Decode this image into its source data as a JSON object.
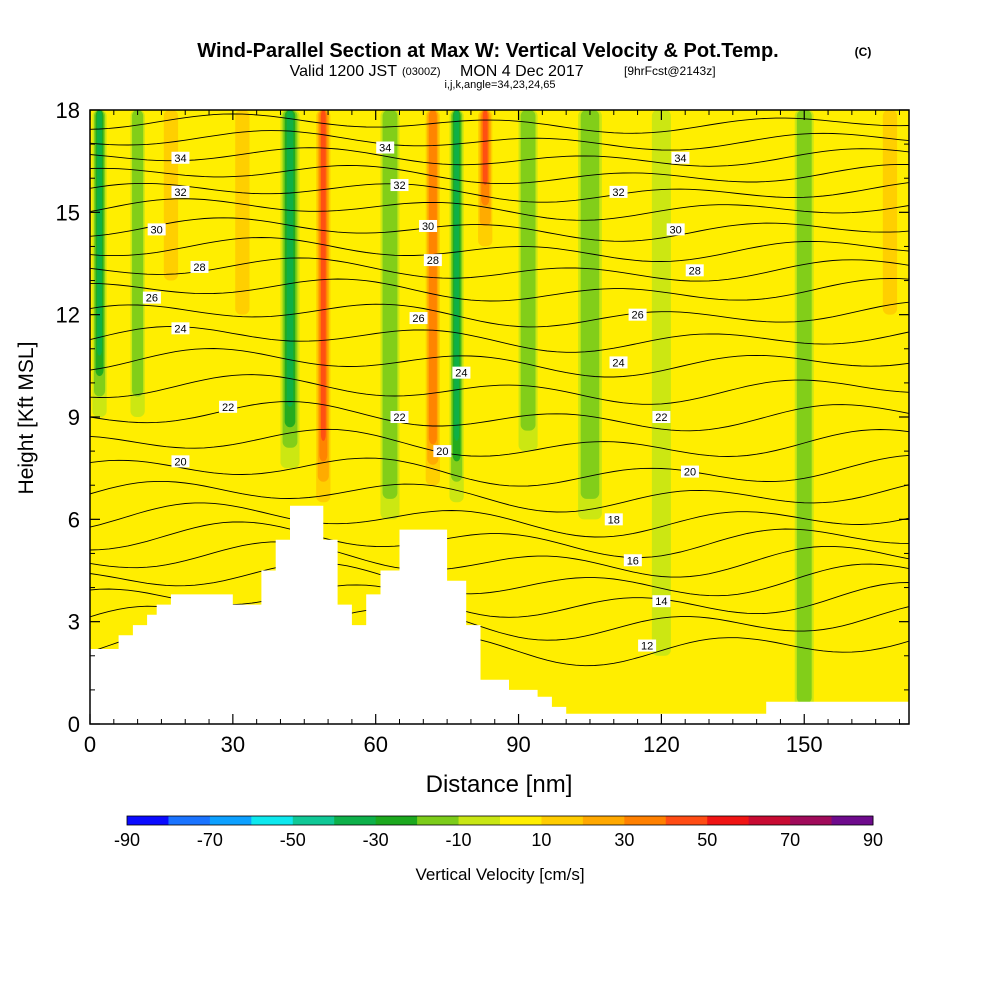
{
  "chart_data": {
    "type": "heatmap",
    "title": "Wind-Parallel Section at Max W: Vertical Velocity & Pot.Temp.",
    "title_unit": "(C)",
    "subtitle": {
      "valid": "Valid 1200 JST",
      "utc": "(0300Z)",
      "date": "MON 4 Dec 2017",
      "fcst": "[9hrFcst@2143z]"
    },
    "grid_info": "i,j,k,angle=34,23,24,65",
    "xlabel": "Distance [nm]",
    "ylabel": "Height [Kft MSL]",
    "xlim": [
      0,
      172
    ],
    "ylim": [
      0,
      18
    ],
    "x_ticks": [
      0,
      30,
      60,
      90,
      120,
      150
    ],
    "y_ticks": [
      0,
      3,
      6,
      9,
      12,
      15,
      18
    ],
    "colorbar": {
      "label": "Vertical Velocity [cm/s]",
      "bounds": [
        -90,
        -80,
        -70,
        -60,
        -50,
        -40,
        -30,
        -20,
        -10,
        0,
        10,
        20,
        30,
        40,
        50,
        60,
        70,
        80,
        90
      ],
      "tick_labels": [
        "-90",
        "-70",
        "-50",
        "-30",
        "-10",
        "10",
        "30",
        "50",
        "70",
        "90"
      ],
      "colors": [
        "#0a0aff",
        "#1a73ff",
        "#0ca0ff",
        "#0ee8ee",
        "#10c896",
        "#0eb04a",
        "#1ca81e",
        "#7ccc1a",
        "#c8e614",
        "#ffee00",
        "#ffcc00",
        "#ffa800",
        "#ff8000",
        "#ff4c14",
        "#f01414",
        "#c80a32",
        "#a00a5a",
        "#6e0a8c"
      ]
    },
    "updraft_columns": [
      {
        "x": 2,
        "w": 3,
        "wmin": -35,
        "ymin": 9
      },
      {
        "x": 10,
        "w": 3,
        "wmin": -15,
        "ymin": 9
      },
      {
        "x": 17,
        "w": 3,
        "wmin": 12,
        "ymin": 13
      },
      {
        "x": 32,
        "w": 3,
        "wmin": 12,
        "ymin": 12
      },
      {
        "x": 42,
        "w": 4,
        "wmin": -38,
        "ymin": 7.5
      },
      {
        "x": 49,
        "w": 3,
        "wmin": 42,
        "ymin": 6.5
      },
      {
        "x": 63,
        "w": 4,
        "wmin": -15,
        "ymin": 6
      },
      {
        "x": 72,
        "w": 3,
        "wmin": 35,
        "ymin": 7
      },
      {
        "x": 77,
        "w": 3,
        "wmin": -38,
        "ymin": 6.5
      },
      {
        "x": 83,
        "w": 3,
        "wmin": 40,
        "ymin": 14
      },
      {
        "x": 92,
        "w": 4,
        "wmin": -12,
        "ymin": 8
      },
      {
        "x": 105,
        "w": 5,
        "wmin": -10,
        "ymin": 6
      },
      {
        "x": 120,
        "w": 4,
        "wmin": -8,
        "ymin": 2
      },
      {
        "x": 150,
        "w": 4,
        "wmin": -10,
        "ymin": 0
      },
      {
        "x": 168,
        "w": 3,
        "wmin": 18,
        "ymin": 12
      }
    ],
    "terrain": [
      [
        0,
        2.2
      ],
      [
        6,
        2.2
      ],
      [
        6,
        2.6
      ],
      [
        9,
        2.6
      ],
      [
        9,
        2.9
      ],
      [
        12,
        2.9
      ],
      [
        12,
        3.2
      ],
      [
        14,
        3.2
      ],
      [
        14,
        3.5
      ],
      [
        17,
        3.5
      ],
      [
        17,
        3.8
      ],
      [
        30,
        3.8
      ],
      [
        30,
        3.5
      ],
      [
        36,
        3.5
      ],
      [
        36,
        4.5
      ],
      [
        39,
        4.5
      ],
      [
        39,
        5.4
      ],
      [
        42,
        5.4
      ],
      [
        42,
        6.4
      ],
      [
        49,
        6.4
      ],
      [
        49,
        5.4
      ],
      [
        52,
        5.4
      ],
      [
        52,
        3.5
      ],
      [
        55,
        3.5
      ],
      [
        55,
        2.9
      ],
      [
        58,
        2.9
      ],
      [
        58,
        3.8
      ],
      [
        61,
        3.8
      ],
      [
        61,
        4.5
      ],
      [
        65,
        4.5
      ],
      [
        65,
        5.7
      ],
      [
        75,
        5.7
      ],
      [
        75,
        4.2
      ],
      [
        79,
        4.2
      ],
      [
        79,
        2.9
      ],
      [
        82,
        2.9
      ],
      [
        82,
        1.3
      ],
      [
        88,
        1.3
      ],
      [
        88,
        1.0
      ],
      [
        94,
        1.0
      ],
      [
        94,
        0.8
      ],
      [
        97,
        0.8
      ],
      [
        97,
        0.5
      ],
      [
        100,
        0.5
      ],
      [
        100,
        0.3
      ],
      [
        142,
        0.3
      ],
      [
        142,
        0.65
      ],
      [
        172,
        0.65
      ]
    ],
    "theta_contours": [
      {
        "value": 12,
        "y": 2.3,
        "label_x": 117
      },
      {
        "value": 13,
        "y": 3.0
      },
      {
        "value": 14,
        "y": 3.6,
        "label_x": 120
      },
      {
        "value": 15,
        "y": 4.2
      },
      {
        "value": 16,
        "y": 4.8,
        "label_x": 114
      },
      {
        "value": 17,
        "y": 5.4
      },
      {
        "value": 18,
        "y": 6.0,
        "label_x": 110
      },
      {
        "value": 19,
        "y": 6.7
      },
      {
        "value": 20,
        "y": 7.4,
        "label_x": 126
      },
      {
        "value": 21,
        "y": 8.2
      },
      {
        "value": 22,
        "y": 9.0,
        "label_x": 120
      },
      {
        "value": 23,
        "y": 9.8
      },
      {
        "value": 24,
        "y": 10.6,
        "label_x": 111
      },
      {
        "value": 25,
        "y": 11.3
      },
      {
        "value": 26,
        "y": 12.0,
        "label_x": 115
      },
      {
        "value": 27,
        "y": 12.7
      },
      {
        "value": 28,
        "y": 13.3,
        "label_x": 127
      },
      {
        "value": 29,
        "y": 13.9
      },
      {
        "value": 30,
        "y": 14.5,
        "label_x": 123
      },
      {
        "value": 31,
        "y": 15.1
      },
      {
        "value": 32,
        "y": 15.6,
        "label_x": 111
      },
      {
        "value": 33,
        "y": 16.1
      },
      {
        "value": 34,
        "y": 16.6,
        "label_x": 124
      },
      {
        "value": 35,
        "y": 17.1
      },
      {
        "value": 36,
        "y": 17.6
      }
    ],
    "contour_labels_extra": [
      {
        "text": "34",
        "x": 19,
        "y": 16.6
      },
      {
        "text": "32",
        "x": 19,
        "y": 15.6
      },
      {
        "text": "30",
        "x": 14,
        "y": 14.5
      },
      {
        "text": "28",
        "x": 23,
        "y": 13.4
      },
      {
        "text": "26",
        "x": 13,
        "y": 12.5
      },
      {
        "text": "24",
        "x": 19,
        "y": 11.6
      },
      {
        "text": "22",
        "x": 29,
        "y": 9.3
      },
      {
        "text": "20",
        "x": 19,
        "y": 7.7
      },
      {
        "text": "34",
        "x": 62,
        "y": 16.9
      },
      {
        "text": "32",
        "x": 65,
        "y": 15.8
      },
      {
        "text": "30",
        "x": 71,
        "y": 14.6
      },
      {
        "text": "28",
        "x": 72,
        "y": 13.6
      },
      {
        "text": "26",
        "x": 69,
        "y": 11.9
      },
      {
        "text": "24",
        "x": 78,
        "y": 10.3
      },
      {
        "text": "22",
        "x": 65,
        "y": 9.0
      },
      {
        "text": "20",
        "x": 74,
        "y": 8.0
      }
    ]
  }
}
